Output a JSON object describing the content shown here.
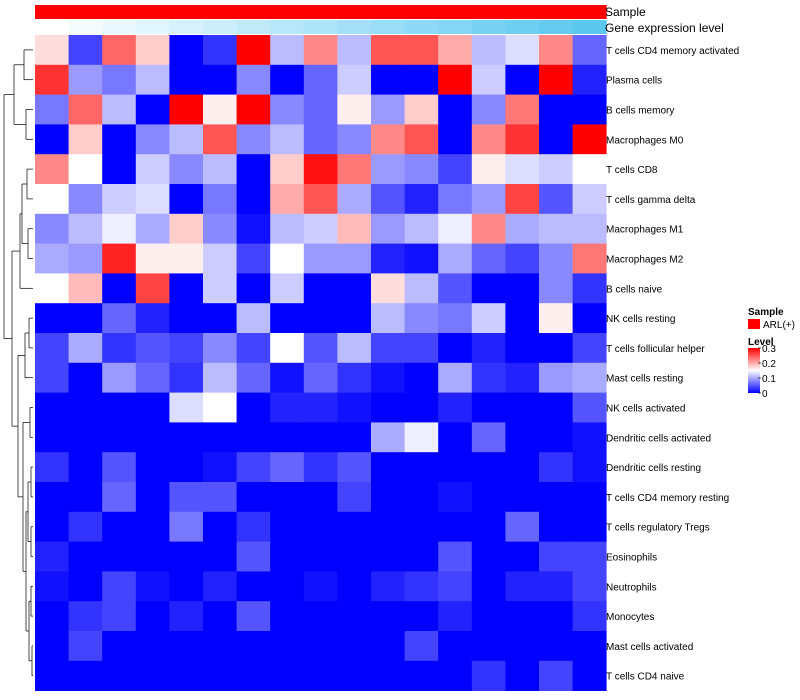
{
  "chart_data": {
    "type": "heatmap",
    "title": "",
    "annotation_tracks": [
      {
        "name": "Sample",
        "color": "#ff0000"
      },
      {
        "name": "Gene expression level",
        "gradient": [
          "#ffffff",
          "#5bc8f0"
        ]
      }
    ],
    "rows": [
      "T cells CD4 memory activated",
      "Plasma cells",
      "B cells memory",
      "Macrophages M0",
      "T cells CD8",
      "T cells gamma delta",
      "Macrophages M1",
      "Macrophages M2",
      "B cells naive",
      "NK cells resting",
      "T cells follicular helper",
      "Mast cells resting",
      "NK cells activated",
      "Dendritic cells activated",
      "Dendritic cells resting",
      "T cells CD4 memory resting",
      "T cells regulatory  Tregs",
      "Eosinophils",
      "Neutrophils",
      "Monocytes",
      "Mast cells activated",
      "T cells CD4 naive"
    ],
    "n_samples": 17,
    "values": [
      [
        0.17,
        0.04,
        0.24,
        0.18,
        0.0,
        0.03,
        0.31,
        0.11,
        0.22,
        0.11,
        0.25,
        0.25,
        0.2,
        0.11,
        0.13,
        0.22,
        0.06
      ],
      [
        0.27,
        0.09,
        0.07,
        0.11,
        0.0,
        0.0,
        0.08,
        0.0,
        0.06,
        0.12,
        0.0,
        0.0,
        0.31,
        0.12,
        0.0,
        0.31,
        0.02
      ],
      [
        0.07,
        0.24,
        0.11,
        0.0,
        0.31,
        0.16,
        0.31,
        0.08,
        0.06,
        0.16,
        0.09,
        0.18,
        0.0,
        0.08,
        0.23,
        0.0,
        0.0
      ],
      [
        0.0,
        0.18,
        0.0,
        0.08,
        0.11,
        0.25,
        0.08,
        0.11,
        0.06,
        0.08,
        0.22,
        0.25,
        0.0,
        0.22,
        0.27,
        0.0,
        0.31
      ],
      [
        0.22,
        0.15,
        0.0,
        0.12,
        0.08,
        0.11,
        0.0,
        0.18,
        0.29,
        0.23,
        0.09,
        0.08,
        0.04,
        0.16,
        0.13,
        0.12,
        0.15
      ],
      [
        0.15,
        0.08,
        0.12,
        0.13,
        0.0,
        0.07,
        0.0,
        0.2,
        0.25,
        0.1,
        0.05,
        0.02,
        0.07,
        0.09,
        0.26,
        0.05,
        0.12
      ],
      [
        0.08,
        0.11,
        0.14,
        0.1,
        0.18,
        0.08,
        0.01,
        0.11,
        0.12,
        0.19,
        0.09,
        0.11,
        0.14,
        0.22,
        0.1,
        0.11,
        0.11
      ],
      [
        0.1,
        0.09,
        0.28,
        0.16,
        0.16,
        0.12,
        0.04,
        0.15,
        0.09,
        0.09,
        0.02,
        0.01,
        0.1,
        0.06,
        0.04,
        0.08,
        0.23
      ],
      [
        0.15,
        0.19,
        0.0,
        0.26,
        0.0,
        0.12,
        0.0,
        0.12,
        0.0,
        0.0,
        0.17,
        0.11,
        0.05,
        0.0,
        0.0,
        0.08,
        0.03
      ],
      [
        0.0,
        0.0,
        0.06,
        0.02,
        0.0,
        0.0,
        0.11,
        0.0,
        0.0,
        0.0,
        0.11,
        0.08,
        0.07,
        0.12,
        0.0,
        0.16,
        0.0
      ],
      [
        0.04,
        0.1,
        0.03,
        0.05,
        0.04,
        0.08,
        0.04,
        0.15,
        0.05,
        0.11,
        0.04,
        0.04,
        0.0,
        0.02,
        0.0,
        0.0,
        0.04
      ],
      [
        0.04,
        0.0,
        0.09,
        0.06,
        0.03,
        0.11,
        0.06,
        0.01,
        0.06,
        0.03,
        0.01,
        0.0,
        0.1,
        0.03,
        0.02,
        0.09,
        0.1
      ],
      [
        0.0,
        0.0,
        0.0,
        0.0,
        0.13,
        0.15,
        0.0,
        0.02,
        0.02,
        0.01,
        0.0,
        0.0,
        0.02,
        0.0,
        0.0,
        0.0,
        0.05
      ],
      [
        0.0,
        0.0,
        0.0,
        0.0,
        0.0,
        0.0,
        0.0,
        0.0,
        0.0,
        0.0,
        0.1,
        0.14,
        0.0,
        0.06,
        0.0,
        0.0,
        0.01
      ],
      [
        0.03,
        0.0,
        0.05,
        0.0,
        0.0,
        0.01,
        0.04,
        0.06,
        0.03,
        0.05,
        0.0,
        0.0,
        0.0,
        0.0,
        0.0,
        0.03,
        0.01
      ],
      [
        0.0,
        0.0,
        0.06,
        0.0,
        0.05,
        0.05,
        0.0,
        0.0,
        0.0,
        0.04,
        0.0,
        0.0,
        0.01,
        0.0,
        0.0,
        0.0,
        0.0
      ],
      [
        0.0,
        0.03,
        0.0,
        0.0,
        0.07,
        0.0,
        0.03,
        0.0,
        0.0,
        0.0,
        0.0,
        0.0,
        0.0,
        0.0,
        0.06,
        0.0,
        0.0
      ],
      [
        0.02,
        0.0,
        0.0,
        0.0,
        0.0,
        0.0,
        0.05,
        0.0,
        0.0,
        0.0,
        0.0,
        0.0,
        0.05,
        0.0,
        0.0,
        0.04,
        0.04
      ],
      [
        0.01,
        0.0,
        0.04,
        0.01,
        0.0,
        0.02,
        0.0,
        0.0,
        0.01,
        0.0,
        0.02,
        0.03,
        0.04,
        0.0,
        0.02,
        0.02,
        0.04
      ],
      [
        0.0,
        0.03,
        0.04,
        0.0,
        0.02,
        0.0,
        0.05,
        0.0,
        0.0,
        0.0,
        0.0,
        0.0,
        0.02,
        0.0,
        0.0,
        0.0,
        0.03
      ],
      [
        0.0,
        0.04,
        0.0,
        0.0,
        0.0,
        0.0,
        0.0,
        0.0,
        0.0,
        0.0,
        0.0,
        0.04,
        0.0,
        0.0,
        0.0,
        0.0,
        0.0
      ],
      [
        0.0,
        0.0,
        0.0,
        0.0,
        0.0,
        0.0,
        0.0,
        0.0,
        0.0,
        0.0,
        0.0,
        0.0,
        0.0,
        0.03,
        0.0,
        0.04,
        0.0
      ]
    ],
    "expression_level": [
      0.0,
      0.06,
      0.12,
      0.19,
      0.25,
      0.31,
      0.38,
      0.44,
      0.5,
      0.56,
      0.62,
      0.69,
      0.75,
      0.81,
      0.88,
      0.94,
      1.0
    ],
    "color_scale": {
      "min": 0,
      "mid": 0.15,
      "max": 0.3,
      "colors": [
        "#0000ff",
        "#ffffff",
        "#ff0000"
      ]
    },
    "legend": {
      "sample_title": "Sample",
      "sample_entry": "ARL(+)",
      "sample_color": "#ff0000",
      "level_title": "Level",
      "ticks": [
        "0.3",
        "0.2",
        "0.1",
        "0"
      ],
      "tick_values": [
        0.3,
        0.2,
        0.1,
        0
      ],
      "position": "right"
    }
  }
}
